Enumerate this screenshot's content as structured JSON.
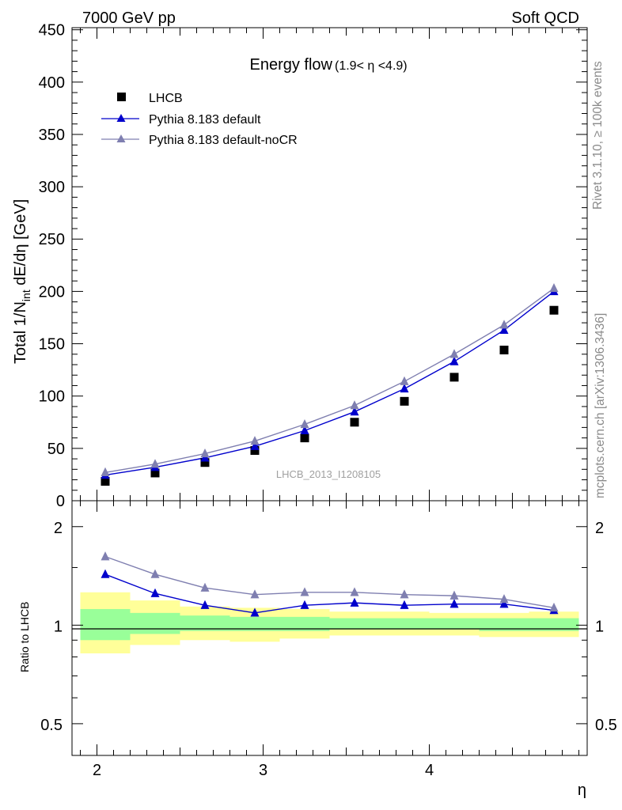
{
  "header": {
    "left": "7000 GeV pp",
    "right": "Soft QCD"
  },
  "side_labels": {
    "rivet": "Rivet 3.1.10, ≥ 100k events",
    "mcplots": "mcplots.cern.ch [arXiv:1306.3436]"
  },
  "chart_data": [
    {
      "type": "scatter",
      "title_main": "Energy flow",
      "title_sub": "(1.9< η <4.9)",
      "ylabel_pre": "Total 1/N",
      "ylabel_sub": "int",
      "ylabel_post": " dE/dη [GeV]",
      "xlabel": "η",
      "watermark": "LHCB_2013_I1208105",
      "xlim": [
        1.85,
        4.95
      ],
      "ylim": [
        0,
        452
      ],
      "yticks": [
        0,
        50,
        100,
        150,
        200,
        250,
        300,
        350,
        400,
        450
      ],
      "ytick_labels": [
        "0",
        "50",
        "100",
        "150",
        "200",
        "250",
        "300",
        "350",
        "400",
        "450"
      ],
      "x": [
        2.05,
        2.35,
        2.65,
        2.95,
        3.25,
        3.55,
        3.85,
        4.15,
        4.45,
        4.75
      ],
      "series": [
        {
          "name": "LHCB",
          "color": "#000000",
          "marker": "square",
          "line": false,
          "values": [
            18.5,
            26.5,
            36.5,
            48,
            60,
            75,
            95,
            118,
            144,
            182
          ]
        },
        {
          "name": "Pythia 8.183 default",
          "color": "#0000cc",
          "marker": "triangle",
          "line": true,
          "values": [
            24.5,
            32,
            41,
            52,
            67,
            85,
            107,
            133,
            163,
            200
          ]
        },
        {
          "name": "Pythia 8.183 default-noCR",
          "color": "#7f7fb0",
          "marker": "triangle",
          "line": true,
          "values": [
            27,
            35,
            45,
            57,
            73,
            91,
            114,
            140,
            168,
            203
          ]
        }
      ],
      "legend": {
        "placement": "top-left"
      }
    },
    {
      "type": "line",
      "ylabel": "Ratio to LHCB",
      "xlabel": "η",
      "scale": "log",
      "xlim": [
        1.85,
        4.95
      ],
      "ylim": [
        0.4,
        2.4
      ],
      "yticks": [
        0.5,
        1,
        2
      ],
      "ytick_labels": [
        "0.5",
        "1",
        "2"
      ],
      "xticks": [
        2,
        3,
        4
      ],
      "xtick_labels": [
        "2",
        "3",
        "4"
      ],
      "bin_edges": [
        1.9,
        2.2,
        2.5,
        2.8,
        3.1,
        3.4,
        3.7,
        4.0,
        4.3,
        4.6,
        4.9
      ],
      "band_yellow": [
        [
          0.82,
          1.26
        ],
        [
          0.87,
          1.19
        ],
        [
          0.9,
          1.14
        ],
        [
          0.89,
          1.13
        ],
        [
          0.91,
          1.12
        ],
        [
          0.93,
          1.1
        ],
        [
          0.93,
          1.1
        ],
        [
          0.93,
          1.09
        ],
        [
          0.92,
          1.09
        ],
        [
          0.92,
          1.1
        ]
      ],
      "band_green": [
        [
          0.9,
          1.12
        ],
        [
          0.94,
          1.09
        ],
        [
          0.96,
          1.07
        ],
        [
          0.96,
          1.06
        ],
        [
          0.96,
          1.06
        ],
        [
          0.97,
          1.05
        ],
        [
          0.97,
          1.05
        ],
        [
          0.97,
          1.05
        ],
        [
          0.96,
          1.05
        ],
        [
          0.96,
          1.05
        ]
      ],
      "x": [
        2.05,
        2.35,
        2.65,
        2.95,
        3.25,
        3.55,
        3.85,
        4.15,
        4.45,
        4.75
      ],
      "series": [
        {
          "name": "Pythia 8.183 default",
          "color": "#0000cc",
          "marker": "triangle",
          "values": [
            1.43,
            1.25,
            1.15,
            1.09,
            1.15,
            1.17,
            1.15,
            1.16,
            1.16,
            1.11
          ]
        },
        {
          "name": "Pythia 8.183 default-noCR",
          "color": "#7f7fb0",
          "marker": "triangle",
          "values": [
            1.62,
            1.43,
            1.3,
            1.24,
            1.26,
            1.26,
            1.24,
            1.23,
            1.2,
            1.13
          ]
        }
      ]
    }
  ]
}
